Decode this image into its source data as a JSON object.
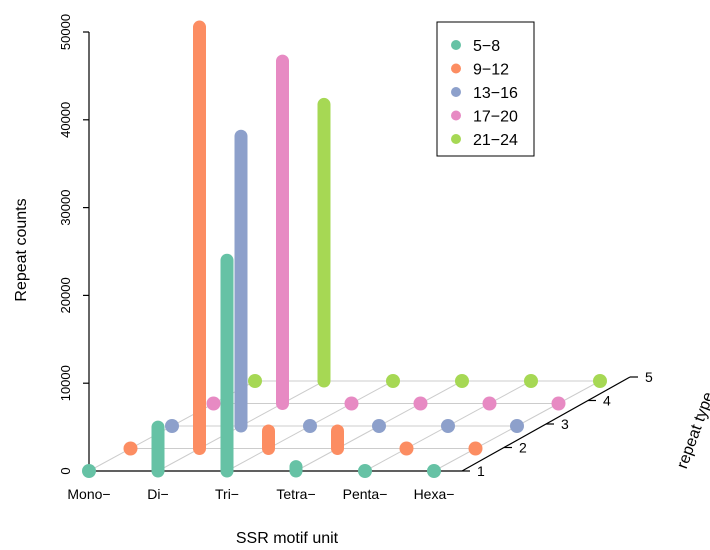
{
  "chart_data": {
    "type": "scatter3d",
    "title": "",
    "xlabel": "SSR motif unit",
    "ylabel": "Repeat counts",
    "zlabel": "repeat type",
    "categories": [
      "Mono−",
      "Di−",
      "Tri−",
      "Tetra−",
      "Penta−",
      "Hexa−"
    ],
    "depth_ticks": [
      "1",
      "2",
      "3",
      "4",
      "5"
    ],
    "y_ticks": [
      "0",
      "10000",
      "20000",
      "30000",
      "40000",
      "50000"
    ],
    "ylim": [
      0,
      50000
    ],
    "legend_position": "top-right",
    "grid": true,
    "series": [
      {
        "name": "5−8",
        "color": "#66c2a5",
        "values": [
          0,
          5000,
          24000,
          500,
          0,
          0
        ]
      },
      {
        "name": "9−12",
        "color": "#fc8d62",
        "values": [
          0,
          48000,
          2000,
          2000,
          0,
          0
        ]
      },
      {
        "name": "13−16",
        "color": "#8da0cb",
        "values": [
          0,
          33000,
          0,
          0,
          0,
          0
        ]
      },
      {
        "name": "17−20",
        "color": "#e78ac3",
        "values": [
          0,
          39000,
          0,
          0,
          0,
          0
        ]
      },
      {
        "name": "21−24",
        "color": "#a6d854",
        "values": [
          0,
          31500,
          0,
          0,
          0,
          0
        ]
      }
    ]
  }
}
